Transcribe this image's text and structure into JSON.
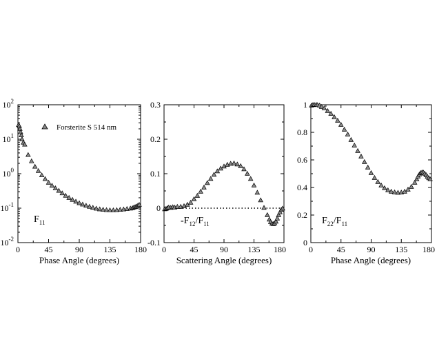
{
  "chart_data": [
    {
      "type": "scatter",
      "title": "",
      "xlabel": "Phase Angle (degrees)",
      "ylabel": "",
      "yscale": "log",
      "xlim": [
        0,
        180
      ],
      "ylim": [
        0.01,
        100
      ],
      "xticks": [
        "0",
        "45",
        "90",
        "135",
        "180"
      ],
      "yticks": [
        {
          "base": "10",
          "exp": "2"
        },
        {
          "base": "10",
          "exp": "1"
        },
        {
          "base": "10",
          "exp": "0"
        },
        {
          "base": "10",
          "exp": "-1"
        },
        {
          "base": "10",
          "exp": "-2"
        }
      ],
      "panel_label": {
        "main": "F",
        "sub": "11",
        "tail": ""
      },
      "legend": {
        "label": "Forsterite S 514 nm",
        "position": "top-right",
        "marker": "triangle"
      },
      "series": [
        {
          "name": "Forsterite S 514 nm",
          "x": [
            1,
            2,
            3,
            4,
            5,
            6,
            8,
            10,
            15,
            20,
            25,
            30,
            35,
            40,
            45,
            50,
            55,
            60,
            65,
            70,
            75,
            80,
            85,
            90,
            95,
            100,
            105,
            110,
            115,
            120,
            125,
            130,
            135,
            140,
            145,
            150,
            155,
            160,
            165,
            168,
            170,
            172,
            174,
            176,
            178
          ],
          "y": [
            26,
            24,
            20,
            16,
            13,
            10,
            8,
            7,
            3.5,
            2.3,
            1.6,
            1.2,
            0.9,
            0.7,
            0.55,
            0.45,
            0.38,
            0.32,
            0.27,
            0.23,
            0.2,
            0.175,
            0.155,
            0.14,
            0.128,
            0.118,
            0.11,
            0.103,
            0.097,
            0.093,
            0.09,
            0.088,
            0.087,
            0.087,
            0.088,
            0.09,
            0.092,
            0.095,
            0.098,
            0.1,
            0.104,
            0.108,
            0.112,
            0.118,
            0.125
          ]
        }
      ]
    },
    {
      "type": "scatter",
      "title": "",
      "xlabel": "Scattering Angle (degrees)",
      "ylabel": "",
      "yscale": "linear",
      "xlim": [
        0,
        180
      ],
      "ylim": [
        -0.1,
        0.3
      ],
      "xticks": [
        "0",
        "45",
        "90",
        "135",
        "180"
      ],
      "yticks": [
        "0.3",
        "0.2",
        "0.1",
        "0",
        "-0.1"
      ],
      "ytick_values": [
        0.3,
        0.2,
        0.1,
        0,
        -0.1
      ],
      "reference_line": 0,
      "panel_label": {
        "main": "-F",
        "sub": "12",
        "tail": "/F",
        "sub2": "11"
      },
      "series": [
        {
          "name": "-F12/F11",
          "x": [
            1,
            3,
            5,
            7,
            10,
            13,
            16,
            20,
            25,
            30,
            35,
            40,
            45,
            50,
            55,
            60,
            65,
            70,
            75,
            80,
            85,
            90,
            95,
            100,
            105,
            110,
            115,
            120,
            125,
            130,
            135,
            140,
            145,
            150,
            155,
            158,
            160,
            162,
            164,
            166,
            168,
            170,
            172,
            174,
            176,
            178
          ],
          "y": [
            -0.003,
            -0.002,
            0,
            0.002,
            0.001,
            0.003,
            0.002,
            0.004,
            0.004,
            0.006,
            0.01,
            0.016,
            0.026,
            0.036,
            0.048,
            0.06,
            0.073,
            0.085,
            0.097,
            0.107,
            0.115,
            0.121,
            0.126,
            0.129,
            0.13,
            0.127,
            0.122,
            0.113,
            0.1,
            0.085,
            0.066,
            0.045,
            0.023,
            0.001,
            -0.02,
            -0.033,
            -0.04,
            -0.045,
            -0.046,
            -0.044,
            -0.039,
            -0.03,
            -0.02,
            -0.012,
            -0.005,
            -0.001
          ]
        }
      ]
    },
    {
      "type": "scatter",
      "title": "",
      "xlabel": "Phase Angle (degrees)",
      "ylabel": "",
      "yscale": "linear",
      "xlim": [
        0,
        180
      ],
      "ylim": [
        0,
        1
      ],
      "xticks": [
        "0",
        "45",
        "90",
        "135",
        "180"
      ],
      "yticks": [
        "1",
        "0.8",
        "0.6",
        "0.4",
        "0.2",
        "0"
      ],
      "ytick_values": [
        1,
        0.8,
        0.6,
        0.4,
        0.2,
        0
      ],
      "panel_label": {
        "main": "F",
        "sub": "22",
        "tail": "/F",
        "sub2": "11"
      },
      "series": [
        {
          "name": "F22/F11",
          "x": [
            1,
            3,
            5,
            8,
            10,
            13,
            16,
            20,
            25,
            30,
            35,
            40,
            45,
            50,
            55,
            60,
            65,
            70,
            75,
            80,
            85,
            90,
            95,
            100,
            105,
            110,
            115,
            120,
            125,
            130,
            135,
            140,
            145,
            150,
            155,
            158,
            160,
            162,
            164,
            166,
            168,
            170,
            172,
            174,
            176,
            178
          ],
          "y": [
            0.995,
            0.998,
            1,
            1,
            0.998,
            0.995,
            0.985,
            0.975,
            0.955,
            0.935,
            0.91,
            0.885,
            0.855,
            0.82,
            0.785,
            0.745,
            0.705,
            0.665,
            0.625,
            0.585,
            0.545,
            0.505,
            0.47,
            0.44,
            0.415,
            0.395,
            0.38,
            0.37,
            0.365,
            0.362,
            0.364,
            0.37,
            0.385,
            0.405,
            0.435,
            0.46,
            0.48,
            0.495,
            0.505,
            0.51,
            0.508,
            0.5,
            0.49,
            0.478,
            0.468,
            0.46
          ]
        }
      ]
    }
  ]
}
